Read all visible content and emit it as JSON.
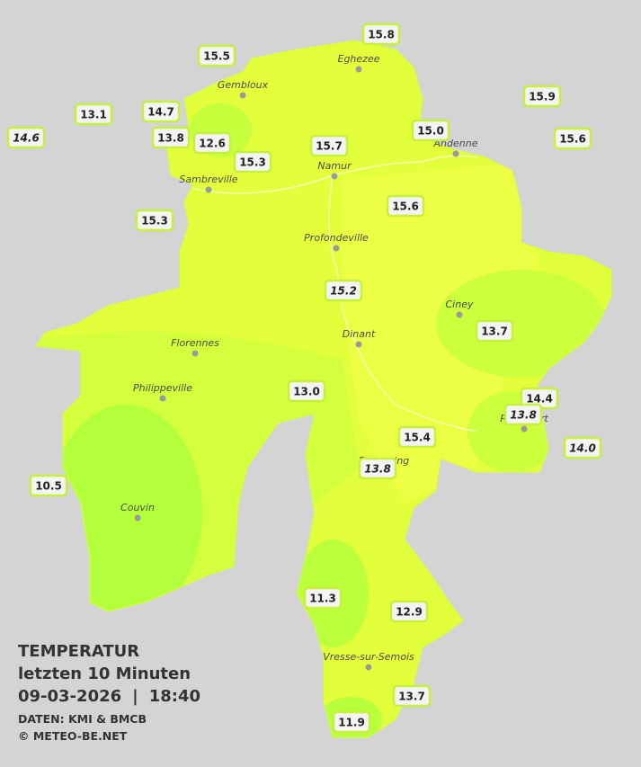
{
  "legend": {
    "title": "TEMPERATUR",
    "period": "letzten 10 Minuten",
    "date": "09-03-2026",
    "separator": "|",
    "time": "18:40",
    "source": "DATEN: KMI & BMCB",
    "copyright": "© METEO-BE.NET"
  },
  "cities": [
    "Eghezee",
    "Gembloux",
    "Andenne",
    "Namur",
    "Sambreville",
    "Profondeville",
    "Ciney",
    "Dinant",
    "Florennes",
    "Philippeville",
    "Beauraing",
    "Rochefort",
    "Couvin",
    "Vresse-sur-Semois"
  ],
  "stations": [
    "15.8",
    "15.5",
    "15.9",
    "13.1",
    "14.7",
    "14.6",
    "13.8",
    "12.6",
    "15.0",
    "15.6",
    "15.7",
    "15.3",
    "15.3",
    "15.6",
    "15.2",
    "13.7",
    "13.0",
    "14.4",
    "13.8",
    "15.4",
    "14.0",
    "13.8",
    "10.5",
    "11.3",
    "12.9",
    "13.7",
    "11.9"
  ]
}
